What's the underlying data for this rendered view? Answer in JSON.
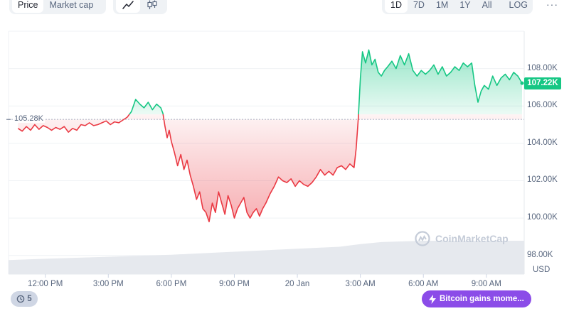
{
  "toolbar": {
    "type_tabs": [
      {
        "label": "Price",
        "active": true
      },
      {
        "label": "Market cap",
        "active": false
      }
    ],
    "chart_style_icons": [
      {
        "icon": "line-chart-icon",
        "active": true
      },
      {
        "icon": "candlestick-icon",
        "active": false
      }
    ],
    "ranges": [
      {
        "label": "1D",
        "active": true
      },
      {
        "label": "7D",
        "active": false
      },
      {
        "label": "1M",
        "active": false
      },
      {
        "label": "1Y",
        "active": false
      },
      {
        "label": "All",
        "active": false
      }
    ],
    "log_label": "LOG",
    "more_label": "···"
  },
  "colors": {
    "up": "#16c784",
    "down": "#ea3943",
    "reference": "#a6b0c3",
    "volume": "#e6e9ee",
    "news": "#8b4ce8"
  },
  "current_price_label": "107.22K",
  "reference_label": "105.28K",
  "watermark": {
    "icon": "coinmarketcap-logo-icon",
    "text": "CoinMarketCap"
  },
  "history_chip": {
    "icon": "history-icon",
    "count": "5"
  },
  "news_chip": {
    "icon": "lightning-icon",
    "text": "Bitcoin gains mome..."
  },
  "chart_data": {
    "type": "line",
    "currency_label": "USD",
    "y_ticks": [
      "108.00K",
      "106.00K",
      "104.00K",
      "102.00K",
      "100.00K",
      "98.00K"
    ],
    "y_tick_values": [
      108000,
      106000,
      104000,
      102000,
      100000,
      98000
    ],
    "ylim": [
      97000,
      110000
    ],
    "x_ticks": [
      "12:00 PM",
      "3:00 PM",
      "6:00 PM",
      "9:00 PM",
      "20 Jan",
      "3:00 AM",
      "6:00 AM",
      "9:00 AM"
    ],
    "x_tick_hours": [
      12,
      15,
      18,
      21,
      24,
      27,
      30,
      33
    ],
    "xlim_hours": [
      10.25,
      34.8
    ],
    "reference_value": 105280,
    "current_value": 107220,
    "series": [
      {
        "x_hours": [
          10.7,
          10.9,
          11.1,
          11.3,
          11.5,
          11.7,
          11.9,
          12.1,
          12.3,
          12.5,
          12.7,
          12.9,
          13.1,
          13.3,
          13.5,
          13.7,
          13.9,
          14.1,
          14.3,
          14.5,
          14.7,
          14.9,
          15.1,
          15.3,
          15.5,
          15.7,
          15.9,
          16.1,
          16.3,
          16.5,
          16.7,
          16.9,
          17.1,
          17.3,
          17.5,
          17.6,
          17.7,
          17.8,
          17.9,
          18.0,
          18.15,
          18.3,
          18.45,
          18.6,
          18.75,
          18.9,
          19.05,
          19.2,
          19.35,
          19.5,
          19.65,
          19.8,
          19.95,
          20.1,
          20.25,
          20.4,
          20.55,
          20.7,
          20.85,
          21.0,
          21.15,
          21.3,
          21.45,
          21.6,
          21.75,
          21.9,
          22.05,
          22.2,
          22.35,
          22.5,
          22.7,
          22.9,
          23.1,
          23.3,
          23.5,
          23.7,
          23.9,
          24.1,
          24.3,
          24.5,
          24.7,
          24.9,
          25.1,
          25.3,
          25.5,
          25.7,
          25.9,
          26.1,
          26.3,
          26.5,
          26.7,
          26.8,
          26.9,
          27.0,
          27.1,
          27.25,
          27.4,
          27.55,
          27.7,
          27.85,
          28.0,
          28.15,
          28.3,
          28.5,
          28.7,
          28.9,
          29.1,
          29.3,
          29.5,
          29.7,
          29.9,
          30.1,
          30.3,
          30.5,
          30.7,
          30.9,
          31.1,
          31.3,
          31.5,
          31.7,
          31.9,
          32.1,
          32.3,
          32.45,
          32.6,
          32.75,
          32.9,
          33.1,
          33.3,
          33.5,
          33.7,
          33.9,
          34.1,
          34.3,
          34.5,
          34.7
        ],
        "values": [
          104800,
          104650,
          104900,
          104700,
          105000,
          104750,
          104950,
          104850,
          104700,
          104850,
          104750,
          104900,
          104600,
          104800,
          104700,
          105000,
          104950,
          105100,
          104950,
          105000,
          105100,
          105200,
          105000,
          105150,
          105100,
          105250,
          105400,
          105700,
          106350,
          106100,
          105900,
          106200,
          105800,
          106100,
          105900,
          105600,
          104900,
          104300,
          104700,
          104100,
          103500,
          102800,
          103400,
          102600,
          103100,
          102300,
          101700,
          101000,
          101400,
          100500,
          100300,
          99800,
          100800,
          100300,
          101400,
          100800,
          100200,
          101200,
          100700,
          100000,
          100500,
          100800,
          101100,
          100300,
          100000,
          100300,
          100500,
          100100,
          100500,
          100800,
          101300,
          101700,
          102200,
          102000,
          101900,
          102100,
          101700,
          102000,
          101800,
          101700,
          101900,
          102200,
          102600,
          102300,
          102500,
          102300,
          102700,
          102800,
          102600,
          102900,
          102700,
          103700,
          105300,
          107500,
          108900,
          108300,
          109000,
          108200,
          108500,
          107800,
          107600,
          107900,
          108100,
          108400,
          108000,
          108700,
          108200,
          108800,
          107900,
          107600,
          107900,
          107700,
          107900,
          108200,
          107700,
          108100,
          107600,
          107800,
          108100,
          107900,
          108300,
          108100,
          108300,
          107100,
          106200,
          106800,
          107100,
          106900,
          107600,
          107100,
          107500,
          107700,
          107400,
          107800,
          107600,
          107220
        ]
      }
    ],
    "volume": {
      "x_hours": [
        10.25,
        12,
        14,
        16,
        18,
        20,
        22,
        24,
        26,
        27,
        28,
        30,
        32,
        34.8
      ],
      "values": [
        0.42,
        0.46,
        0.5,
        0.54,
        0.58,
        0.64,
        0.7,
        0.76,
        0.82,
        0.9,
        0.96,
        1.0,
        1.0,
        1.0
      ]
    },
    "grid": true
  }
}
